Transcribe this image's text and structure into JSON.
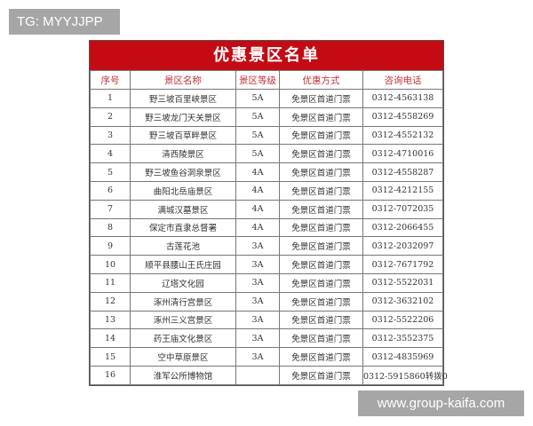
{
  "overlay": {
    "tg": "TG: MYYJJPP",
    "watermark": "www.group-kaifa.com"
  },
  "table": {
    "title": "优惠景区名单",
    "headers": [
      "序号",
      "景区名称",
      "景区等级",
      "优惠方式",
      "咨询电话"
    ],
    "rows": [
      [
        "1",
        "野三坡百里峡景区",
        "5A",
        "免景区首道门票",
        "0312-4563138"
      ],
      [
        "2",
        "野三坡龙门天关景区",
        "5A",
        "免景区首道门票",
        "0312-4558269"
      ],
      [
        "3",
        "野三坡百草畔景区",
        "5A",
        "免景区首道门票",
        "0312-4552132"
      ],
      [
        "4",
        "清西陵景区",
        "5A",
        "免景区首道门票",
        "0312-4710016"
      ],
      [
        "5",
        "野三坡鱼谷洞泉景区",
        "4A",
        "免景区首道门票",
        "0312-4558287"
      ],
      [
        "6",
        "曲阳北岳庙景区",
        "4A",
        "免景区首道门票",
        "0312-4212155"
      ],
      [
        "7",
        "满城汉墓景区",
        "4A",
        "免景区首道门票",
        "0312-7072035"
      ],
      [
        "8",
        "保定市直隶总督署",
        "4A",
        "免景区首道门票",
        "0312-2066455"
      ],
      [
        "9",
        "古莲花池",
        "3A",
        "免景区首道门票",
        "0312-2032097"
      ],
      [
        "10",
        "顺平县腰山王氏庄园",
        "3A",
        "免景区首道门票",
        "0312-7671792"
      ],
      [
        "11",
        "辽塔文化园",
        "3A",
        "免景区首道门票",
        "0312-5522031"
      ],
      [
        "12",
        "涿州清行宫景区",
        "3A",
        "免景区首道门票",
        "0312-3632102"
      ],
      [
        "13",
        "涿州三义宫景区",
        "3A",
        "免景区首道门票",
        "0312-5522206"
      ],
      [
        "14",
        "药王庙文化景区",
        "3A",
        "免景区首道门票",
        "0312-3552375"
      ],
      [
        "15",
        "空中草原景区",
        "3A",
        "免景区首道门票",
        "0312-4835969"
      ],
      [
        "16",
        "淮军公所博物馆",
        "",
        "免景区首道门票",
        "0312-5915860转拨0"
      ]
    ]
  }
}
